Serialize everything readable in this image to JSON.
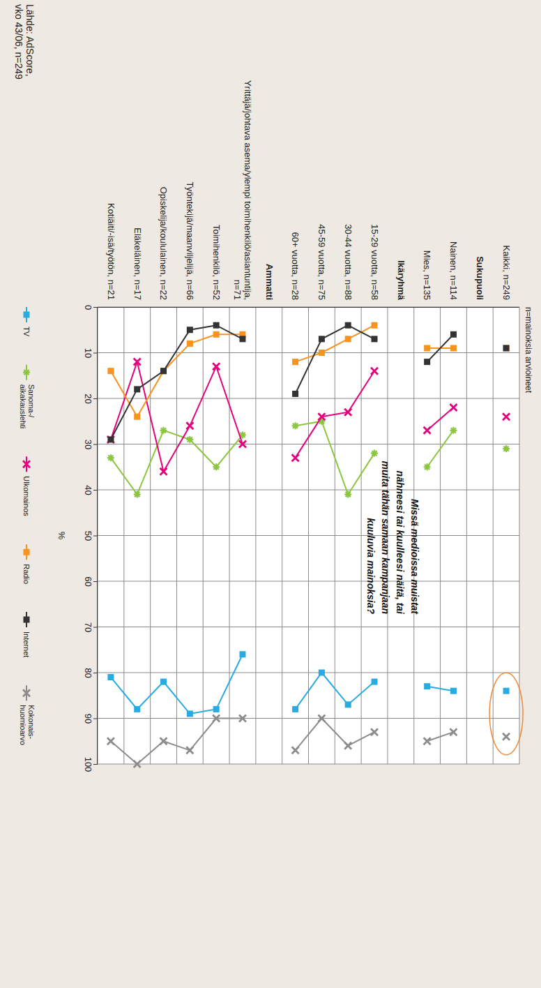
{
  "chart_data": {
    "type": "line",
    "title": "Missä medioissa muistat nähneesi tai kuulleesi näitä, tai muita tähän samaan kampanjaan kuuluvia mainoksia?",
    "subtitle": "n=mainoksia arvioineet",
    "ylabel": "%",
    "source": "Lähde: AdScore, vko 43/06, n=249",
    "categories": [
      "Kaikki, n=249",
      "Sukupuoli",
      "Nainen, n=114",
      "Mies, n=135",
      "Ikäryhmä",
      "15-29 vuotta, n=58",
      "30-44 vuotta, n=88",
      "45-59 vuotta, n=75",
      "60+ vuotta, n=28",
      "Ammatti",
      "Yrittäjä/johtava asema/ylempi toimihenkilö/asiantuntija, n=71",
      "Toimihenkilö, n=52",
      "Työntekijä/maanviljelijä, n=66",
      "Opiskelija/koululainen, n=22",
      "Eläkeläinen, n=17",
      "Kotiäiti/-isä/työtön, n=21"
    ],
    "series": [
      {
        "name": "TV",
        "color": "#29abe2",
        "marker": "square",
        "values": [
          84,
          null,
          84,
          83,
          null,
          82,
          87,
          80,
          88,
          null,
          76,
          88,
          89,
          82,
          88,
          81
        ]
      },
      {
        "name": "Sanoma-/aikakauslehti",
        "color": "#8cc63f",
        "marker": "asterisk",
        "values": [
          31,
          null,
          27,
          35,
          null,
          32,
          41,
          25,
          26,
          null,
          28,
          35,
          29,
          27,
          41,
          33
        ]
      },
      {
        "name": "Ulkomainos",
        "color": "#e5007d",
        "marker": "x",
        "values": [
          24,
          null,
          22,
          27,
          null,
          14,
          23,
          24,
          33,
          null,
          30,
          13,
          26,
          36,
          12,
          29
        ]
      },
      {
        "name": "Radio",
        "color": "#f7931e",
        "marker": "square",
        "values": [
          9,
          null,
          9,
          9,
          null,
          4,
          7,
          10,
          12,
          null,
          6,
          6,
          8,
          14,
          24,
          14
        ]
      },
      {
        "name": "Internet",
        "color": "#333333",
        "marker": "square",
        "values": [
          9,
          null,
          6,
          12,
          null,
          7,
          4,
          7,
          19,
          null,
          7,
          4,
          5,
          14,
          18,
          29
        ]
      },
      {
        "name": "Kokonais-huomioarvo",
        "color": "#8c8c8c",
        "marker": "x",
        "values": [
          94,
          null,
          93,
          95,
          null,
          93,
          96,
          90,
          97,
          null,
          90,
          90,
          97,
          95,
          100,
          95
        ]
      }
    ],
    "ylim": [
      0,
      100
    ],
    "yticks": [
      0,
      10,
      20,
      30,
      40,
      50,
      60,
      70,
      80,
      90,
      100
    ],
    "grid": true,
    "legend": "bottom"
  }
}
